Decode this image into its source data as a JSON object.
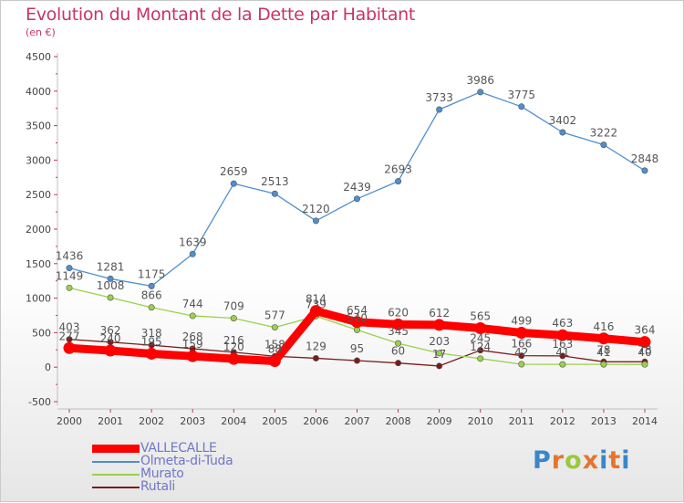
{
  "title": "Evolution du Montant de la Dette par Habitant",
  "subtitle": "(en €)",
  "logo": {
    "text": "Proxiti",
    "colors": [
      "#3b86c8",
      "#e8742a",
      "#9cc83c",
      "#e8742a",
      "#3b86c8",
      "#e8742a",
      "#3b86c8"
    ]
  },
  "chart_data": {
    "type": "line",
    "title": "Evolution du Montant de la Dette par Habitant",
    "unit": "(en €)",
    "categories": [
      "2000",
      "2001",
      "2002",
      "2003",
      "2004",
      "2005",
      "2006",
      "2007",
      "2008",
      "2009",
      "2010",
      "2011",
      "2012",
      "2013",
      "2014"
    ],
    "ylim": [
      -500,
      4500
    ],
    "yticks": [
      -500,
      0,
      500,
      1000,
      1500,
      2000,
      2500,
      3000,
      3500,
      4000,
      4500
    ],
    "grid": false,
    "legend_position": "bottom-left",
    "series": [
      {
        "name": "VALLECALLE",
        "color": "#ff0000",
        "values": [
          277,
          240,
          195,
          159,
          120,
          88,
          814,
          654,
          620,
          612,
          565,
          499,
          463,
          416,
          364
        ],
        "labels": [
          "277",
          "240",
          "195",
          "159",
          "120",
          "88",
          "814",
          "654",
          "620",
          "612",
          "565",
          "499",
          "463",
          "416",
          "364"
        ]
      },
      {
        "name": "Olmeta-di-Tuda",
        "color": "#4f8fce",
        "values": [
          1436,
          1281,
          1175,
          1639,
          2659,
          2513,
          2120,
          2439,
          2693,
          3733,
          3986,
          3775,
          3402,
          3222,
          2848
        ],
        "labels": [
          "1436",
          "1281",
          "1175",
          "1639",
          "2659",
          "2513",
          "2120",
          "2439",
          "2693",
          "3733",
          "3986",
          "3775",
          "3402",
          "3222",
          "2848"
        ]
      },
      {
        "name": "Murato",
        "color": "#9ad14b",
        "values": [
          1149,
          1008,
          866,
          744,
          709,
          577,
          739,
          540,
          345,
          203,
          124,
          42,
          41,
          41,
          40
        ],
        "labels": [
          "1149",
          "1008",
          "866",
          "744",
          "709",
          "577",
          "739",
          "540",
          "345",
          "203",
          "124",
          "42",
          "41",
          "41",
          "40"
        ]
      },
      {
        "name": "Rutali",
        "color": "#7a1c1c",
        "values": [
          403,
          362,
          318,
          268,
          216,
          158,
          129,
          95,
          60,
          17,
          245,
          166,
          163,
          78,
          78
        ],
        "labels": [
          "403",
          "362",
          "318",
          "268",
          "216",
          "158",
          "129",
          "95",
          "60",
          "17",
          "245",
          "166",
          "163",
          "78",
          "78"
        ]
      }
    ]
  }
}
